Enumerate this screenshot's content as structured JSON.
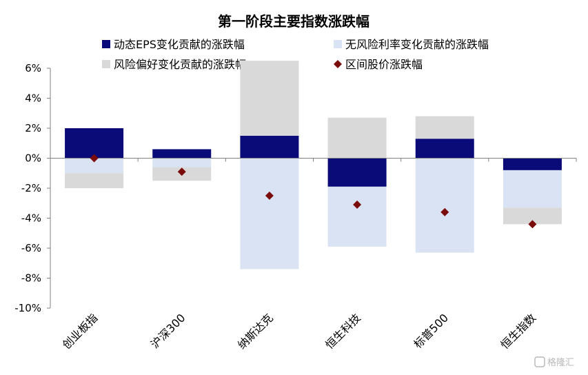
{
  "chart_data": {
    "type": "bar",
    "title": "第一阶段主要指数涨跌幅",
    "categories": [
      "创业板指",
      "沪深300",
      "纳斯达克",
      "恒生科技",
      "标普500",
      "恒生指数"
    ],
    "series": [
      {
        "name": "动态EPS变化贡献的涨跌幅",
        "kind": "stacked-bar",
        "color": "#0a0a78",
        "values": [
          2.0,
          0.6,
          1.5,
          -1.9,
          1.3,
          -0.8
        ]
      },
      {
        "name": "无风险利率变化贡献的涨跌幅",
        "kind": "stacked-bar",
        "color": "#dae3f3",
        "values": [
          -1.0,
          -0.6,
          -7.4,
          -4.0,
          -6.3,
          -2.5
        ]
      },
      {
        "name": "风险偏好变化贡献的涨跌幅",
        "kind": "stacked-bar",
        "color": "#d9d9d9",
        "values": [
          -1.0,
          -0.9,
          5.0,
          2.7,
          1.5,
          -1.1
        ]
      },
      {
        "name": "区间股价涨跌幅",
        "kind": "marker",
        "color": "#7b0c0c",
        "values": [
          0.0,
          -0.9,
          -2.5,
          -3.1,
          -3.6,
          -4.4
        ]
      }
    ],
    "ylim": [
      -10,
      6
    ],
    "yticks": [
      6,
      4,
      2,
      0,
      -2,
      -4,
      -6,
      -8,
      -10
    ],
    "ytick_labels": [
      "6%",
      "4%",
      "2%",
      "0%",
      "-2%",
      "-4%",
      "-6%",
      "-8%",
      "-10%"
    ],
    "xlabel": "",
    "ylabel": "",
    "legend_position": "top",
    "grid": false
  },
  "watermark": "格隆汇"
}
